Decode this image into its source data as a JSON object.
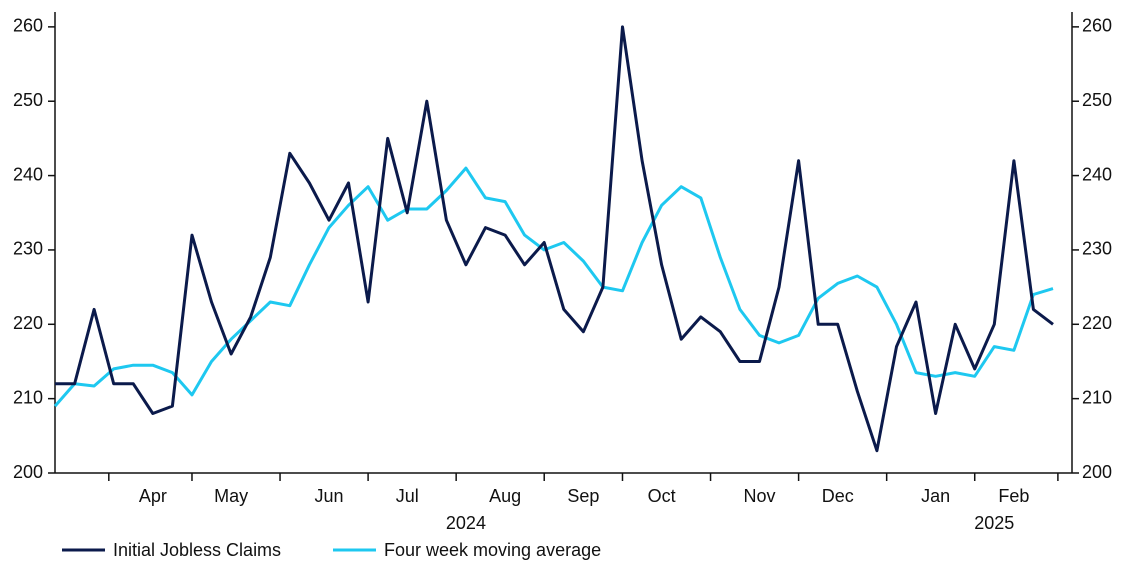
{
  "chart_data": {
    "type": "line",
    "categories": [
      null,
      null,
      null,
      null,
      null,
      "Apr",
      null,
      null,
      null,
      "May",
      null,
      null,
      null,
      null,
      "Jun",
      null,
      null,
      null,
      "Jul",
      null,
      null,
      null,
      null,
      "Aug",
      null,
      null,
      null,
      "Sep",
      null,
      null,
      null,
      "Oct",
      null,
      null,
      null,
      null,
      "Nov",
      null,
      null,
      null,
      "Dec",
      null,
      null,
      null,
      null,
      "Jan",
      null,
      null,
      null,
      "Feb",
      null,
      null
    ],
    "year_labels": [
      null,
      null,
      null,
      null,
      null,
      null,
      null,
      null,
      null,
      null,
      null,
      null,
      null,
      null,
      null,
      null,
      null,
      null,
      null,
      null,
      null,
      "2024",
      null,
      null,
      null,
      null,
      null,
      null,
      null,
      null,
      null,
      null,
      null,
      null,
      null,
      null,
      null,
      null,
      null,
      null,
      null,
      null,
      null,
      null,
      null,
      null,
      null,
      null,
      "2025",
      null,
      null,
      null
    ],
    "series": [
      {
        "name": "Initial Jobless Claims",
        "color": "#0b1a4b",
        "axis": "y",
        "values": [
          212,
          212,
          222,
          212,
          212,
          208,
          209,
          232,
          223,
          216,
          221,
          229,
          243,
          239,
          234,
          239,
          223,
          245,
          235,
          250,
          234,
          228,
          233,
          232,
          228,
          231,
          222,
          219,
          225,
          260,
          242,
          228,
          218,
          221,
          219,
          215,
          215,
          225,
          242,
          220,
          220,
          211,
          203,
          217,
          223,
          208,
          220,
          214,
          220,
          242,
          222,
          220
        ]
      },
      {
        "name": "Four week moving average",
        "color": "#1ec8f0",
        "axis": "y",
        "values": [
          209,
          212,
          211.7,
          214,
          214.5,
          214.5,
          213.5,
          210.5,
          215,
          218,
          220.5,
          223,
          222.5,
          228,
          233,
          236,
          238.5,
          234,
          235.5,
          235.5,
          238,
          241,
          237,
          236.5,
          232,
          230,
          231,
          228.5,
          225,
          224.5,
          231,
          236,
          238.5,
          237,
          229,
          222,
          218.5,
          217.5,
          218.5,
          223.5,
          225.5,
          226.5,
          225,
          220,
          213.5,
          213,
          213.5,
          213,
          217,
          216.5,
          224,
          224.8
        ]
      }
    ],
    "ylim": [
      200,
      262
    ],
    "yticks": [
      200,
      210,
      220,
      230,
      240,
      250,
      260
    ],
    "y2lim": [
      200,
      262
    ],
    "y2ticks": [
      200,
      210,
      220,
      230,
      240,
      250,
      260
    ],
    "legend": "bottom"
  }
}
